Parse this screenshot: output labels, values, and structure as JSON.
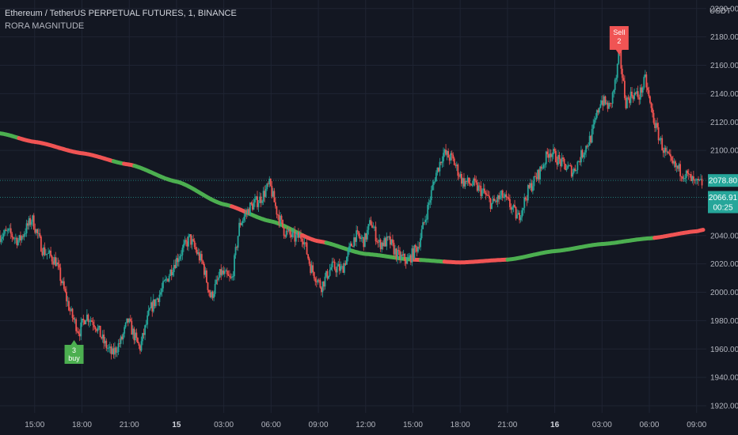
{
  "header": {
    "symbol_line": "Ethereum / TetherUS PERPETUAL FUTURES, 1, BINANCE",
    "indicator_name": "RORA MAGNITUDE",
    "currency": "USDT"
  },
  "colors": {
    "background": "#131722",
    "grid": "#1f2433",
    "candle_up": "#26a69a",
    "candle_down": "#ef5350",
    "ma_green": "#4caf50",
    "ma_red": "#f05454",
    "sell_label": "#f05454",
    "buy_label": "#4caf50",
    "price_tag": "#26a69a",
    "axis_text": "#b2b5be"
  },
  "chart_data": {
    "type": "candlestick",
    "timeframe_minutes": 1,
    "y_axis": {
      "range": [
        1915,
        2206
      ],
      "ticks": [
        1920,
        1940,
        1960,
        1980,
        2000,
        2020,
        2040,
        2060,
        2080,
        2100,
        2120,
        2140,
        2160,
        2180,
        2200
      ]
    },
    "x_axis": {
      "tick_labels": [
        "15:00",
        "18:00",
        "21:00",
        "15",
        "03:00",
        "06:00",
        "09:00",
        "12:00",
        "15:00",
        "18:00",
        "21:00",
        "16",
        "03:00",
        "06:00",
        "09:00"
      ]
    },
    "price_path": [
      [
        "12:48",
        2040
      ],
      [
        "13:20",
        2042
      ],
      [
        "14:00",
        2036
      ],
      [
        "14:50",
        2052
      ],
      [
        "15:30",
        2030
      ],
      [
        "16:20",
        2022
      ],
      [
        "17:00",
        1996
      ],
      [
        "17:20",
        1984
      ],
      [
        "17:50",
        1972
      ],
      [
        "18:15",
        1984
      ],
      [
        "18:50",
        1978
      ],
      [
        "19:25",
        1964
      ],
      [
        "19:55",
        1956
      ],
      [
        "20:30",
        1966
      ],
      [
        "20:55",
        1980
      ],
      [
        "21:40",
        1960
      ],
      [
        "22:20",
        1988
      ],
      [
        "23:00",
        2000
      ],
      [
        "23:50",
        2020
      ],
      [
        "00:50",
        2038
      ],
      [
        "01:40",
        2020
      ],
      [
        "02:10",
        1996
      ],
      [
        "02:50",
        2014
      ],
      [
        "03:30",
        2008
      ],
      [
        "04:00",
        2048
      ],
      [
        "04:40",
        2060
      ],
      [
        "05:20",
        2066
      ],
      [
        "05:55",
        2076
      ],
      [
        "06:20",
        2058
      ],
      [
        "06:50",
        2043
      ],
      [
        "07:30",
        2038
      ],
      [
        "08:00",
        2040
      ],
      [
        "08:30",
        2018
      ],
      [
        "09:10",
        2004
      ],
      [
        "09:50",
        2018
      ],
      [
        "10:30",
        2016
      ],
      [
        "11:20",
        2040
      ],
      [
        "11:55",
        2036
      ],
      [
        "12:20",
        2050
      ],
      [
        "12:50",
        2034
      ],
      [
        "13:30",
        2036
      ],
      [
        "14:00",
        2026
      ],
      [
        "14:40",
        2022
      ],
      [
        "15:20",
        2033
      ],
      [
        "15:55",
        2058
      ],
      [
        "16:25",
        2082
      ],
      [
        "16:55",
        2098
      ],
      [
        "17:30",
        2094
      ],
      [
        "18:10",
        2078
      ],
      [
        "18:50",
        2076
      ],
      [
        "19:30",
        2070
      ],
      [
        "20:00",
        2062
      ],
      [
        "20:40",
        2068
      ],
      [
        "21:15",
        2060
      ],
      [
        "21:40",
        2052
      ],
      [
        "22:20",
        2072
      ],
      [
        "23:00",
        2084
      ],
      [
        "23:40",
        2100
      ],
      [
        "00:30",
        2090
      ],
      [
        "01:10",
        2085
      ],
      [
        "01:45",
        2098
      ],
      [
        "02:20",
        2110
      ],
      [
        "02:55",
        2136
      ],
      [
        "03:30",
        2130
      ],
      [
        "03:55",
        2152
      ],
      [
        "04:05",
        2170
      ],
      [
        "04:30",
        2134
      ],
      [
        "04:55",
        2140
      ],
      [
        "05:20",
        2138
      ],
      [
        "05:45",
        2150
      ],
      [
        "06:05",
        2130
      ],
      [
        "06:25",
        2116
      ],
      [
        "06:55",
        2100
      ],
      [
        "07:25",
        2090
      ],
      [
        "07:55",
        2086
      ],
      [
        "08:25",
        2082
      ],
      [
        "08:55",
        2076
      ],
      [
        "09:25",
        2077
      ]
    ],
    "ma_path": [
      [
        "12:48",
        2112
      ],
      [
        "15:00",
        2106
      ],
      [
        "18:00",
        2098
      ],
      [
        "21:00",
        2090
      ],
      [
        "00:00",
        2078
      ],
      [
        "03:00",
        2062
      ],
      [
        "06:00",
        2050
      ],
      [
        "09:00",
        2036
      ],
      [
        "12:00",
        2027
      ],
      [
        "15:00",
        2023
      ],
      [
        "18:00",
        2021
      ],
      [
        "21:00",
        2023
      ],
      [
        "00:00",
        2029
      ],
      [
        "03:00",
        2034
      ],
      [
        "06:00",
        2038
      ],
      [
        "09:00",
        2043
      ],
      [
        "09:25",
        2044
      ]
    ],
    "ma_segments": [
      {
        "until": "14:00",
        "color": "green"
      },
      {
        "until": "20:00",
        "color": "red"
      },
      {
        "until": "20:40",
        "color": "green"
      },
      {
        "until": "21:20",
        "color": "red"
      },
      {
        "until": "03:30",
        "color": "green"
      },
      {
        "until": "04:30",
        "color": "red"
      },
      {
        "until": "08:00",
        "color": "green"
      },
      {
        "until": "09:30",
        "color": "red"
      },
      {
        "until": "15:00",
        "color": "green"
      },
      {
        "until": "15:30",
        "color": "red"
      },
      {
        "until": "17:00",
        "color": "green"
      },
      {
        "until": "21:00",
        "color": "red"
      },
      {
        "until": "06:20",
        "color": "green"
      },
      {
        "until": "09:25",
        "color": "red"
      }
    ],
    "price_lines": [
      2078.8,
      2066.91
    ],
    "price_tags": [
      {
        "value": 2078.8,
        "text": "2078.80"
      },
      {
        "value": 2066.91,
        "text": "2066.91",
        "countdown": "00:25"
      }
    ],
    "signals": [
      {
        "type": "sell",
        "time": "04:05",
        "price": 2172,
        "label": "Sell",
        "count": "2"
      },
      {
        "type": "buy",
        "time": "17:30",
        "price": 1976,
        "label": "buy",
        "count": "3"
      }
    ]
  }
}
